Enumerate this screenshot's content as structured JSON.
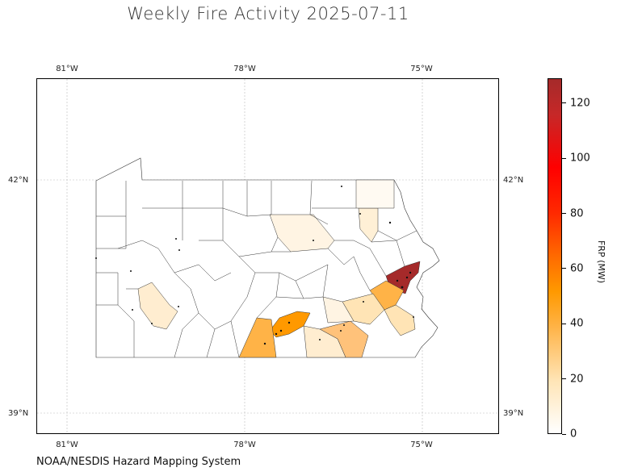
{
  "title": "Weekly Fire Activity 2025-07-11",
  "credit": "NOAA/NESDIS Hazard Mapping System",
  "longitude_labels": [
    "81°W",
    "78°W",
    "75°W"
  ],
  "latitude_labels": [
    "42°N",
    "39°N"
  ],
  "colorbar": {
    "title": "FRP (MW)",
    "ticks": [
      "0",
      "20",
      "40",
      "60",
      "80",
      "100",
      "120"
    ],
    "range": [
      0,
      129
    ]
  },
  "colors": {
    "high": "#a52a2a",
    "mid": "#ff9900",
    "low": "#ffe4b5",
    "none": "#ffffff"
  }
}
